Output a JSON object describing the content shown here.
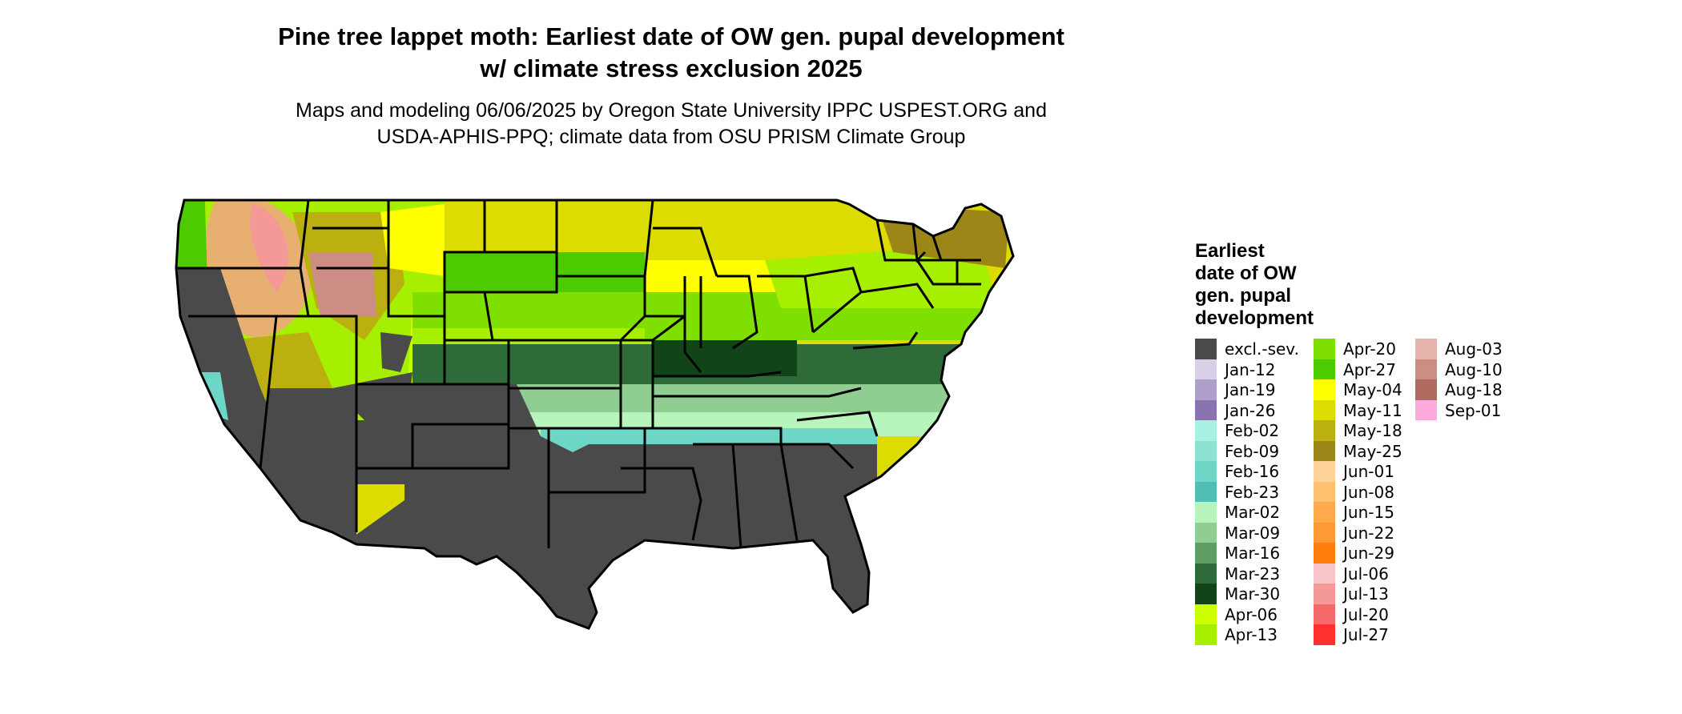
{
  "title_line1": "Pine tree lappet moth: Earliest date of OW gen. pupal development",
  "title_line2": "w/ climate stress exclusion 2025",
  "subtitle_line1": "Maps and modeling 06/06/2025 by Oregon State University IPPC USPEST.ORG and",
  "subtitle_line2": "USDA-APHIS-PPQ; climate data from OSU PRISM Climate Group",
  "legend": {
    "title_lines": [
      "Earliest",
      "date of OW",
      "gen. pupal",
      "development"
    ],
    "columns": [
      [
        {
          "label": "excl.-sev.",
          "color": "#4a4a4a"
        },
        {
          "label": "Jan-12",
          "color": "#d9cfe9"
        },
        {
          "label": "Jan-19",
          "color": "#ae9fcd"
        },
        {
          "label": "Jan-26",
          "color": "#8a74b0"
        },
        {
          "label": "Feb-02",
          "color": "#a8f0e2"
        },
        {
          "label": "Feb-09",
          "color": "#8ee2d2"
        },
        {
          "label": "Feb-16",
          "color": "#6dd6c6"
        },
        {
          "label": "Feb-23",
          "color": "#4fbfb3"
        },
        {
          "label": "Mar-02",
          "color": "#b7f5bd"
        },
        {
          "label": "Mar-09",
          "color": "#8fce90"
        },
        {
          "label": "Mar-16",
          "color": "#5e9e63"
        },
        {
          "label": "Mar-23",
          "color": "#2f6b38"
        },
        {
          "label": "Mar-30",
          "color": "#114419"
        },
        {
          "label": "Apr-06",
          "color": "#ccff00"
        },
        {
          "label": "Apr-13",
          "color": "#a6ef00"
        }
      ],
      [
        {
          "label": "Apr-20",
          "color": "#7fe000"
        },
        {
          "label": "Apr-27",
          "color": "#4ccc00"
        },
        {
          "label": "May-04",
          "color": "#ffff00"
        },
        {
          "label": "May-11",
          "color": "#dcdc00"
        },
        {
          "label": "May-18",
          "color": "#bcb010"
        },
        {
          "label": "May-25",
          "color": "#9c8618"
        },
        {
          "label": "Jun-01",
          "color": "#ffd39a"
        },
        {
          "label": "Jun-08",
          "color": "#ffc070"
        },
        {
          "label": "Jun-15",
          "color": "#ffaa4d"
        },
        {
          "label": "Jun-22",
          "color": "#ff9933"
        },
        {
          "label": "Jun-29",
          "color": "#ff7f0e"
        },
        {
          "label": "Jul-06",
          "color": "#f7c4c9"
        },
        {
          "label": "Jul-13",
          "color": "#f49898"
        },
        {
          "label": "Jul-20",
          "color": "#f46a6a"
        },
        {
          "label": "Jul-27",
          "color": "#ff3030"
        }
      ],
      [
        {
          "label": "Aug-03",
          "color": "#e4b4ab"
        },
        {
          "label": "Aug-10",
          "color": "#cc8e84"
        },
        {
          "label": "Aug-18",
          "color": "#b06b60"
        },
        {
          "label": "Sep-01",
          "color": "#ffaadd"
        }
      ]
    ]
  }
}
